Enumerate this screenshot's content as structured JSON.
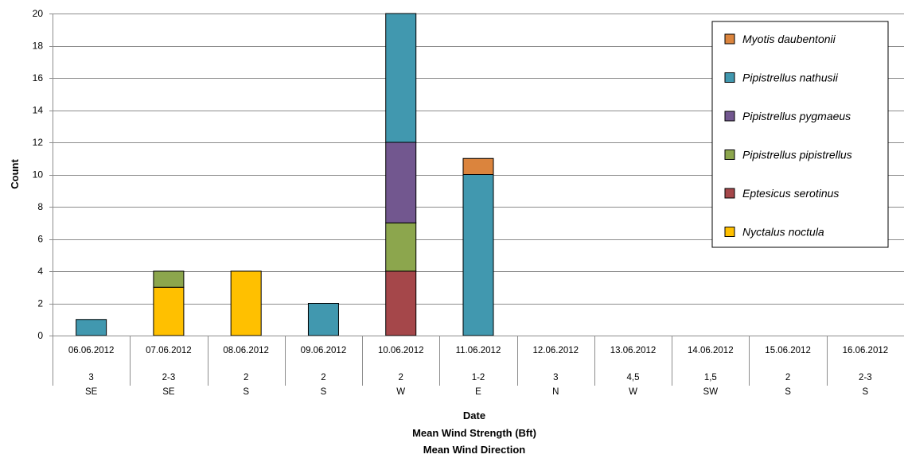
{
  "chart_data": {
    "type": "bar",
    "stacked": true,
    "ylabel": "Count",
    "xlabel_lines": [
      "Date",
      "Mean Wind Strength (Bft)",
      "Mean Wind Direction"
    ],
    "ylim": [
      0,
      20
    ],
    "yticks": [
      0,
      2,
      4,
      6,
      8,
      10,
      12,
      14,
      16,
      18,
      20
    ],
    "grid": true,
    "legend_position": "top-right",
    "categories": [
      {
        "date": "06.06.2012",
        "wind_strength": "3",
        "wind_direction": "SE"
      },
      {
        "date": "07.06.2012",
        "wind_strength": "2-3",
        "wind_direction": "SE"
      },
      {
        "date": "08.06.2012",
        "wind_strength": "2",
        "wind_direction": "S"
      },
      {
        "date": "09.06.2012",
        "wind_strength": "2",
        "wind_direction": "S"
      },
      {
        "date": "10.06.2012",
        "wind_strength": "2",
        "wind_direction": "W"
      },
      {
        "date": "11.06.2012",
        "wind_strength": "1-2",
        "wind_direction": "E"
      },
      {
        "date": "12.06.2012",
        "wind_strength": "3",
        "wind_direction": "N"
      },
      {
        "date": "13.06.2012",
        "wind_strength": "4,5",
        "wind_direction": "W"
      },
      {
        "date": "14.06.2012",
        "wind_strength": "1,5",
        "wind_direction": "SW"
      },
      {
        "date": "15.06.2012",
        "wind_strength": "2",
        "wind_direction": "S"
      },
      {
        "date": "16.06.2012",
        "wind_strength": "2-3",
        "wind_direction": "S"
      }
    ],
    "series": [
      {
        "name": "Nyctalus noctula",
        "color": "#FFC000",
        "values": [
          0,
          3,
          4,
          0,
          0,
          0,
          0,
          0,
          0,
          0,
          0
        ]
      },
      {
        "name": "Eptesicus serotinus",
        "color": "#A5474A",
        "values": [
          0,
          0,
          0,
          0,
          4,
          0,
          0,
          0,
          0,
          0,
          0
        ]
      },
      {
        "name": "Pipistrellus pipistrellus",
        "color": "#8CA64D",
        "values": [
          0,
          1,
          0,
          0,
          3,
          0,
          0,
          0,
          0,
          0,
          0
        ]
      },
      {
        "name": "Pipistrellus pygmaeus",
        "color": "#72578F",
        "values": [
          0,
          0,
          0,
          0,
          5,
          0,
          0,
          0,
          0,
          0,
          0
        ]
      },
      {
        "name": "Pipistrellus nathusii",
        "color": "#4198AF",
        "values": [
          1,
          0,
          0,
          2,
          8,
          10,
          0,
          0,
          0,
          0,
          0
        ]
      },
      {
        "name": "Myotis daubentonii",
        "color": "#DB843D",
        "values": [
          0,
          0,
          0,
          0,
          0,
          1,
          0,
          0,
          0,
          0,
          0
        ]
      }
    ],
    "legend_order": [
      "Myotis daubentonii",
      "Pipistrellus nathusii",
      "Pipistrellus pygmaeus",
      "Pipistrellus pipistrellus",
      "Eptesicus serotinus",
      "Nyctalus noctula"
    ]
  }
}
